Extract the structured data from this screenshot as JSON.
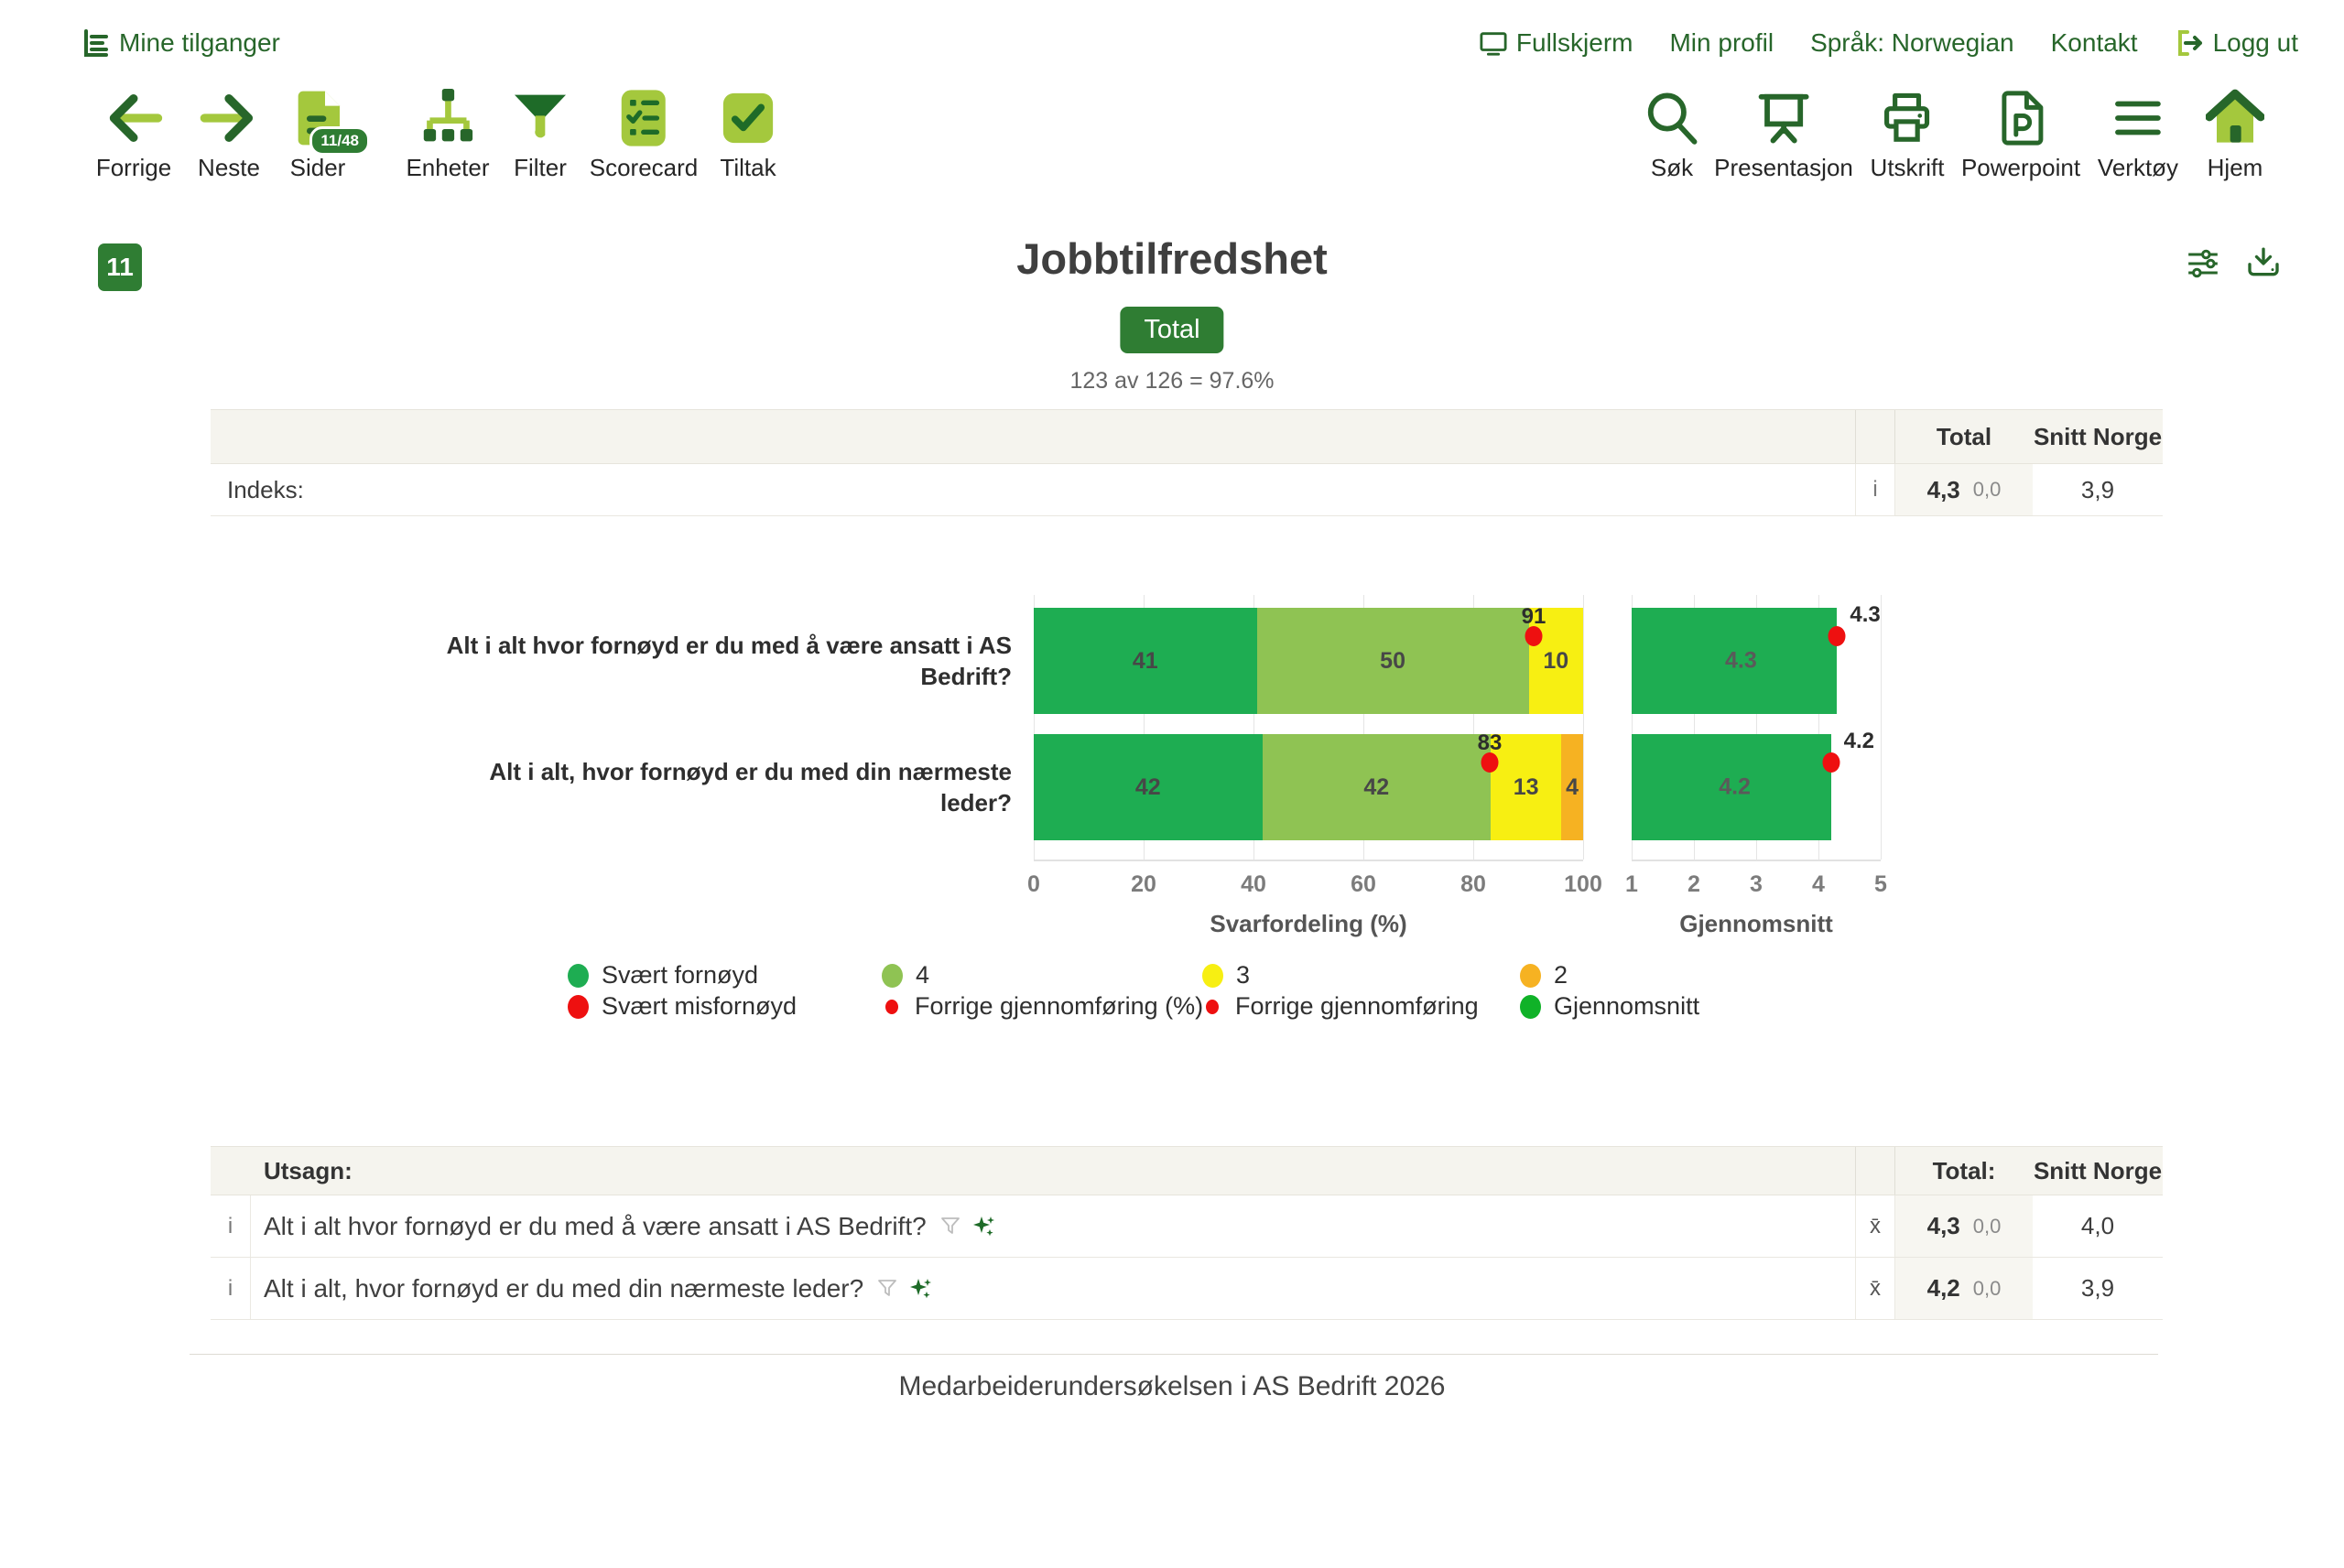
{
  "topbar": {
    "my_access": "Mine tilganger",
    "fullscreen": "Fullskjerm",
    "my_profile": "Min profil",
    "language": "Språk: Norwegian",
    "contact": "Kontakt",
    "logout": "Logg ut"
  },
  "toolbar": {
    "left": [
      {
        "label": "Forrige",
        "icon": "arrow-left-icon"
      },
      {
        "label": "Neste",
        "icon": "arrow-right-icon"
      },
      {
        "label": "Sider",
        "icon": "pages-icon",
        "badge": "11/48"
      },
      {
        "label": "Enheter",
        "icon": "org-chart-icon"
      },
      {
        "label": "Filter",
        "icon": "funnel-icon"
      },
      {
        "label": "Scorecard",
        "icon": "checklist-icon"
      },
      {
        "label": "Tiltak",
        "icon": "check-square-icon"
      }
    ],
    "right": [
      {
        "label": "Søk",
        "icon": "search-icon"
      },
      {
        "label": "Presentasjon",
        "icon": "presentation-icon"
      },
      {
        "label": "Utskrift",
        "icon": "printer-icon"
      },
      {
        "label": "Powerpoint",
        "icon": "powerpoint-file-icon"
      },
      {
        "label": "Verktøy",
        "icon": "menu-icon"
      },
      {
        "label": "Hjem",
        "icon": "home-icon"
      }
    ]
  },
  "page": {
    "number": "11",
    "title": "Jobbtilfredshet",
    "scope_label": "Total",
    "response_rate": "123 av 126 = 97.6%",
    "footer": "Medarbeiderundersøkelsen i AS Bedrift 2026"
  },
  "index_table": {
    "col_total": "Total",
    "col_snitt": "Snitt Norge",
    "row_label": "Indeks:",
    "info": "i",
    "total": "4,3",
    "diff": "0,0",
    "snitt": "3,9"
  },
  "legend": {
    "rows": [
      [
        {
          "label": "Svært fornøyd",
          "color": "#1ead52",
          "size": "large"
        },
        {
          "label": "4",
          "color": "#8fc353",
          "size": "large"
        },
        {
          "label": "3",
          "color": "#f7ef12",
          "size": "large"
        },
        {
          "label": "2",
          "color": "#f6b222",
          "size": "large"
        }
      ],
      [
        {
          "label": "Svært misfornøyd",
          "color": "#ee1010",
          "size": "large"
        },
        {
          "label": "Forrige gjennomføring (%)",
          "color": "#ee1010",
          "size": "small"
        },
        {
          "label": "Forrige gjennomføring",
          "color": "#ee1010",
          "size": "small"
        },
        {
          "label": "Gjennomsnitt",
          "color": "#10b228",
          "size": "large"
        }
      ]
    ]
  },
  "statements_table": {
    "header_label": "Utsagn:",
    "col_total": "Total:",
    "col_snitt": "Snitt Norge",
    "rows": [
      {
        "info": "i",
        "text": "Alt i alt hvor fornøyd er du med å være ansatt i AS Bedrift?",
        "xbar": "x̄",
        "total": "4,3",
        "diff": "0,0",
        "snitt": "4,0"
      },
      {
        "info": "i",
        "text": "Alt i alt, hvor fornøyd er du med din nærmeste leder?",
        "xbar": "x̄",
        "total": "4,2",
        "diff": "0,0",
        "snitt": "3,9"
      }
    ]
  },
  "chart_data": [
    {
      "type": "bar",
      "orientation": "horizontal",
      "stacked": true,
      "xlabel": "Svarfordeling (%)",
      "xlim": [
        0,
        100
      ],
      "ticks": [
        0,
        20,
        40,
        60,
        80,
        100
      ],
      "grid": true,
      "categories": [
        "Alt i alt hvor fornøyd er du med å være ansatt i AS Bedrift?",
        "Alt i alt, hvor fornøyd er du med din nærmeste leder?"
      ],
      "series": [
        {
          "name": "Svært fornøyd",
          "color": "#1ead52",
          "values": [
            41,
            42
          ]
        },
        {
          "name": "4",
          "color": "#8fc353",
          "values": [
            50,
            42
          ]
        },
        {
          "name": "3",
          "color": "#f7ef12",
          "values": [
            10,
            13
          ]
        },
        {
          "name": "2",
          "color": "#f6b222",
          "values": [
            0,
            4
          ]
        }
      ],
      "markers": {
        "name": "Forrige gjennomføring (%)",
        "color": "#ee1010",
        "values": [
          91,
          83
        ]
      }
    },
    {
      "type": "bar",
      "orientation": "horizontal",
      "xlabel": "Gjennomsnitt",
      "xlim": [
        1,
        5
      ],
      "ticks": [
        1,
        2,
        3,
        4,
        5
      ],
      "grid": true,
      "bar_color": "#1ead52",
      "values": [
        4.3,
        4.2
      ],
      "value_labels": [
        "4.3",
        "4.2"
      ],
      "markers": {
        "name": "Forrige gjennomføring",
        "color": "#ee1010",
        "values": [
          4.3,
          4.2
        ],
        "labels": [
          "4.3",
          "4.2"
        ]
      }
    }
  ]
}
